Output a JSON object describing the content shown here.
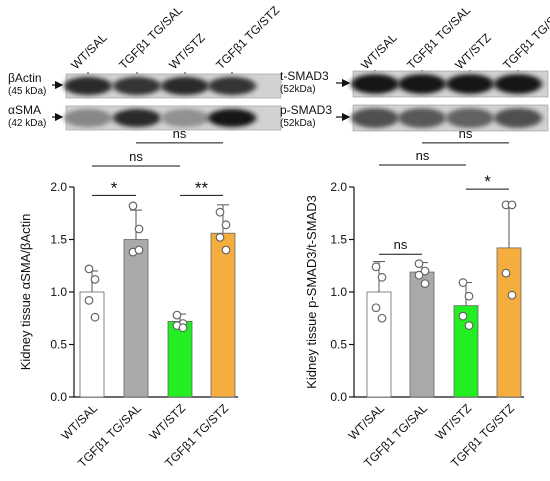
{
  "blots": [
    {
      "lane_labels": [
        "WT/SAL",
        "TGFβ1 TG/SAL",
        "WT/STZ",
        "TGFβ1 TG/STZ"
      ],
      "rows": [
        {
          "name": "βActin",
          "kda": "(45 kDa)",
          "band_darkness": [
            0.85,
            0.8,
            0.85,
            0.8
          ]
        },
        {
          "name": "αSMA",
          "kda": "(42 kDa)",
          "band_darkness": [
            0.35,
            0.85,
            0.3,
            0.95
          ]
        }
      ]
    },
    {
      "lane_labels": [
        "WT/SAL",
        "TGFβ1 TG/SAL",
        "WT/STZ",
        "TGFβ1 TG/STZ"
      ],
      "rows": [
        {
          "name": "t-SMAD3",
          "kda": "(52kDa)",
          "band_darkness": [
            0.95,
            0.95,
            0.95,
            0.95
          ]
        },
        {
          "name": "p-SMAD3",
          "kda": "(52kDa)",
          "band_darkness": [
            0.65,
            0.6,
            0.55,
            0.65
          ]
        }
      ]
    }
  ],
  "chart_data": [
    {
      "type": "bar",
      "ylabel": "Kidney tissue αSMA/βActin",
      "categories": [
        "WT/SAL",
        "TGFβ1 TG/SAL",
        "WT/STZ",
        "TGFβ1 TG/STZ"
      ],
      "values": [
        1.0,
        1.5,
        0.72,
        1.56
      ],
      "errors": [
        0.2,
        0.28,
        0.07,
        0.27
      ],
      "points": [
        [
          1.22,
          1.12,
          0.92,
          0.76
        ],
        [
          1.82,
          1.6,
          1.38,
          1.4
        ],
        [
          0.78,
          0.7,
          0.68,
          0.66
        ],
        [
          1.76,
          1.64,
          1.52,
          1.4
        ]
      ],
      "colors": [
        "#ffffff",
        "#a9a9a9",
        "#22ee22",
        "#f5ad3d"
      ],
      "ylim": [
        0,
        2.0
      ],
      "yticks": [
        "0.0",
        "0.5",
        "1.0",
        "1.5",
        "2.0"
      ],
      "brackets": [
        {
          "from": 0,
          "to": 1,
          "label": "*",
          "y": 1.92
        },
        {
          "from": 2,
          "to": 3,
          "label": "**",
          "y": 1.92
        },
        {
          "from": 0,
          "to": 2,
          "label": "ns",
          "y": 2.2
        },
        {
          "from": 1,
          "to": 3,
          "label": "ns",
          "y": 2.42
        }
      ]
    },
    {
      "type": "bar",
      "ylabel": "Kidney tissue p-SMAD3/t-SMAD3",
      "categories": [
        "WT/SAL",
        "TGFβ1 TG/SAL",
        "WT/STZ",
        "TGFβ1 TG/STZ"
      ],
      "values": [
        1.0,
        1.19,
        0.87,
        1.42
      ],
      "errors": [
        0.29,
        0.09,
        0.22,
        0.4
      ],
      "points": [
        [
          1.24,
          1.14,
          0.85,
          0.75
        ],
        [
          1.27,
          1.2,
          1.16,
          1.08
        ],
        [
          1.09,
          0.96,
          0.77,
          0.68
        ],
        [
          1.83,
          1.83,
          1.18,
          0.97
        ]
      ],
      "colors": [
        "#ffffff",
        "#a9a9a9",
        "#22ee22",
        "#f5ad3d"
      ],
      "ylim": [
        0,
        2.0
      ],
      "yticks": [
        "0.0",
        "0.5",
        "1.0",
        "1.5",
        "2.0"
      ],
      "brackets": [
        {
          "from": 0,
          "to": 1,
          "label": "ns",
          "y": 1.36
        },
        {
          "from": 2,
          "to": 3,
          "label": "*",
          "y": 1.98
        },
        {
          "from": 0,
          "to": 2,
          "label": "ns",
          "y": 2.21
        },
        {
          "from": 1,
          "to": 3,
          "label": "ns",
          "y": 2.42
        }
      ]
    }
  ]
}
